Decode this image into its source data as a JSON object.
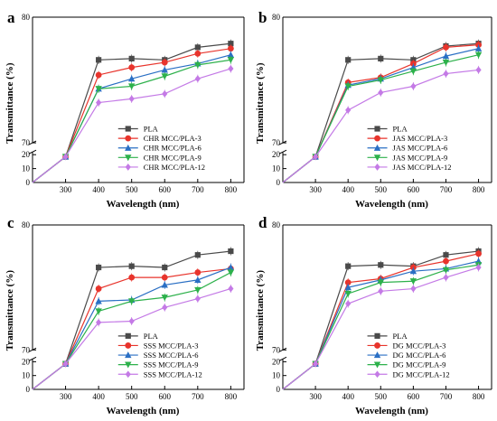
{
  "figure": {
    "title": ""
  },
  "colors": {
    "PLA": "#4a4a4a",
    "S3": "#e8342c",
    "S6": "#2a6fc4",
    "S9": "#2db14b",
    "S12": "#c47ae6"
  },
  "chart_data": [
    {
      "type": "line",
      "panel_label": "a",
      "title": "",
      "xlabel": "Wavelength (nm)",
      "ylabel": "Transmittance (%)",
      "x": [
        200,
        300,
        400,
        500,
        600,
        700,
        800
      ],
      "x_ticks": [
        300,
        400,
        500,
        600,
        700,
        800
      ],
      "y_ticks_lower": [
        0,
        10,
        20
      ],
      "y_ticks_upper": [
        70,
        80
      ],
      "y_axis_break": {
        "lower_range": [
          0,
          22
        ],
        "upper_range": [
          70,
          80
        ]
      },
      "grid": false,
      "legend_position": "lower-right",
      "series": [
        {
          "name": "PLA",
          "color_key": "PLA",
          "marker": "square",
          "values": [
            0,
            18.5,
            76.6,
            76.7,
            76.6,
            77.6,
            77.9
          ]
        },
        {
          "name": "CHR MCC/PLA-3",
          "color_key": "S3",
          "marker": "circle",
          "values": [
            0,
            18.5,
            75.4,
            76.0,
            76.4,
            77.1,
            77.5
          ]
        },
        {
          "name": "CHR MCC/PLA-6",
          "color_key": "S6",
          "marker": "triangle-up",
          "values": [
            0,
            18.5,
            74.3,
            75.1,
            75.8,
            76.3,
            77.0
          ]
        },
        {
          "name": "CHR MCC/PLA-9",
          "color_key": "S9",
          "marker": "triangle-down",
          "values": [
            0,
            18.5,
            74.3,
            74.5,
            75.3,
            76.2,
            76.6
          ]
        },
        {
          "name": "CHR MCC/PLA-12",
          "color_key": "S12",
          "marker": "diamond",
          "values": [
            0,
            18.5,
            73.2,
            73.5,
            73.9,
            75.1,
            75.9
          ]
        }
      ]
    },
    {
      "type": "line",
      "panel_label": "b",
      "title": "",
      "xlabel": "Wavelength (nm)",
      "ylabel": "Transmittance (%)",
      "x": [
        200,
        300,
        400,
        500,
        600,
        700,
        800
      ],
      "x_ticks": [
        300,
        400,
        500,
        600,
        700,
        800
      ],
      "y_ticks_lower": [
        0,
        10,
        20
      ],
      "y_ticks_upper": [
        70,
        80
      ],
      "y_axis_break": {
        "lower_range": [
          0,
          22
        ],
        "upper_range": [
          70,
          80
        ]
      },
      "grid": false,
      "legend_position": "lower-right",
      "series": [
        {
          "name": "PLA",
          "color_key": "PLA",
          "marker": "square",
          "values": [
            0,
            18.5,
            76.6,
            76.7,
            76.6,
            77.7,
            77.9
          ]
        },
        {
          "name": "JAS MCC/PLA-3",
          "color_key": "S3",
          "marker": "circle",
          "values": [
            0,
            18.5,
            74.8,
            75.2,
            76.3,
            77.6,
            77.8
          ]
        },
        {
          "name": "JAS MCC/PLA-6",
          "color_key": "S6",
          "marker": "triangle-up",
          "values": [
            0,
            18.5,
            74.6,
            75.1,
            76.0,
            76.9,
            77.5
          ]
        },
        {
          "name": "JAS MCC/PLA-9",
          "color_key": "S9",
          "marker": "triangle-down",
          "values": [
            0,
            18.5,
            74.5,
            75.0,
            75.7,
            76.4,
            77.0
          ]
        },
        {
          "name": "JAS MCC/PLA-12",
          "color_key": "S12",
          "marker": "diamond",
          "values": [
            0,
            18.5,
            72.6,
            74.0,
            74.5,
            75.5,
            75.8
          ]
        }
      ]
    },
    {
      "type": "line",
      "panel_label": "c",
      "title": "",
      "xlabel": "Wavelength (nm)",
      "ylabel": "Transmittance (%)",
      "x": [
        200,
        300,
        400,
        500,
        600,
        700,
        800
      ],
      "x_ticks": [
        300,
        400,
        500,
        600,
        700,
        800
      ],
      "y_ticks_lower": [
        0,
        10,
        20
      ],
      "y_ticks_upper": [
        70,
        80
      ],
      "y_axis_break": {
        "lower_range": [
          0,
          22
        ],
        "upper_range": [
          70,
          80
        ]
      },
      "grid": false,
      "legend_position": "lower-right",
      "series": [
        {
          "name": "PLA",
          "color_key": "PLA",
          "marker": "square",
          "values": [
            0,
            18.5,
            76.6,
            76.7,
            76.6,
            77.6,
            77.9
          ]
        },
        {
          "name": "SSS MCC/PLA-3",
          "color_key": "S3",
          "marker": "circle",
          "values": [
            0,
            18.5,
            74.9,
            75.8,
            75.8,
            76.2,
            76.5
          ]
        },
        {
          "name": "SSS MCC/PLA-6",
          "color_key": "S6",
          "marker": "triangle-up",
          "values": [
            0,
            18.5,
            73.9,
            74.0,
            75.2,
            75.6,
            76.6
          ]
        },
        {
          "name": "SSS MCC/PLA-9",
          "color_key": "S9",
          "marker": "triangle-down",
          "values": [
            0,
            18.5,
            73.1,
            73.9,
            74.2,
            74.8,
            76.2
          ]
        },
        {
          "name": "SSS MCC/PLA-12",
          "color_key": "S12",
          "marker": "diamond",
          "values": [
            0,
            18.5,
            72.2,
            72.3,
            73.4,
            74.1,
            74.9
          ]
        }
      ]
    },
    {
      "type": "line",
      "panel_label": "d",
      "title": "",
      "xlabel": "Wavelength (nm)",
      "ylabel": "Transmittance (%)",
      "x": [
        200,
        300,
        400,
        500,
        600,
        700,
        800
      ],
      "x_ticks": [
        300,
        400,
        500,
        600,
        700,
        800
      ],
      "y_ticks_lower": [
        0,
        10,
        20
      ],
      "y_ticks_upper": [
        70,
        80
      ],
      "y_axis_break": {
        "lower_range": [
          0,
          22
        ],
        "upper_range": [
          70,
          80
        ]
      },
      "grid": false,
      "legend_position": "lower-right",
      "series": [
        {
          "name": "PLA",
          "color_key": "PLA",
          "marker": "square",
          "values": [
            0,
            18.5,
            76.7,
            76.8,
            76.7,
            77.6,
            77.9
          ]
        },
        {
          "name": "DG MCC/PLA-3",
          "color_key": "S3",
          "marker": "circle",
          "values": [
            0,
            18.5,
            75.4,
            75.7,
            76.6,
            77.1,
            77.7
          ]
        },
        {
          "name": "DG MCC/PLA-6",
          "color_key": "S6",
          "marker": "triangle-up",
          "values": [
            0,
            18.5,
            75.0,
            75.6,
            76.3,
            76.5,
            77.1
          ]
        },
        {
          "name": "DG MCC/PLA-9",
          "color_key": "S9",
          "marker": "triangle-down",
          "values": [
            0,
            18.5,
            74.5,
            75.4,
            75.5,
            76.4,
            76.8
          ]
        },
        {
          "name": "DG MCC/PLA-12",
          "color_key": "S12",
          "marker": "diamond",
          "values": [
            0,
            18.5,
            73.7,
            74.7,
            74.9,
            75.8,
            76.6
          ]
        }
      ]
    }
  ]
}
